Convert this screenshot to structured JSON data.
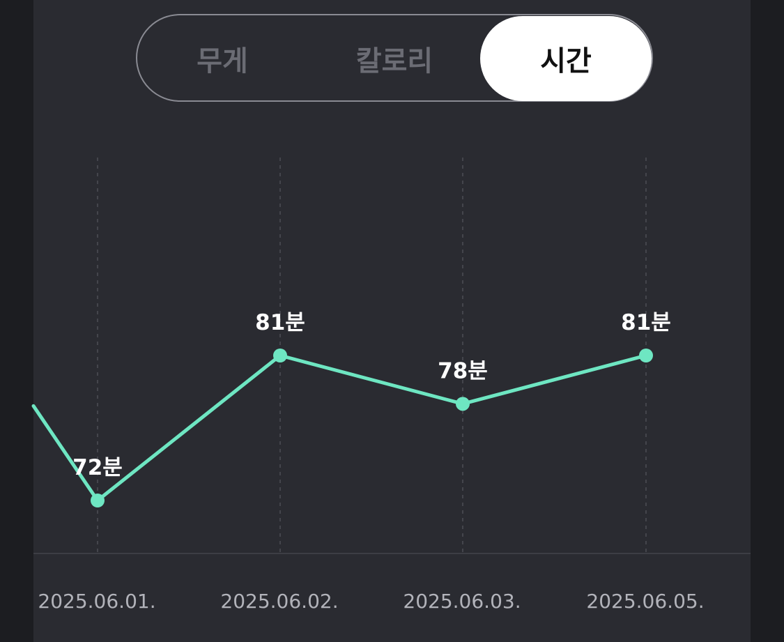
{
  "tabs": [
    {
      "label": "무게",
      "selected": false
    },
    {
      "label": "칼로리",
      "selected": false
    },
    {
      "label": "시간",
      "selected": true
    }
  ],
  "colors": {
    "line": "#6ee6c2",
    "panel": "#2a2b31",
    "gridline": "#44454c",
    "axis": "#3d3e45"
  },
  "chart_data": {
    "type": "line",
    "categories": [
      "2025.06.01.",
      "2025.06.02.",
      "2025.06.03.",
      "2025.06.05."
    ],
    "series": [
      {
        "values": [
          72,
          81,
          78,
          81
        ],
        "labels": [
          "72분",
          "81분",
          "78분",
          "81분"
        ]
      }
    ],
    "unit": "분",
    "previous_value_offscreen": 78,
    "ylim": [
      60,
      90
    ],
    "grid": "vertical-dashed"
  }
}
